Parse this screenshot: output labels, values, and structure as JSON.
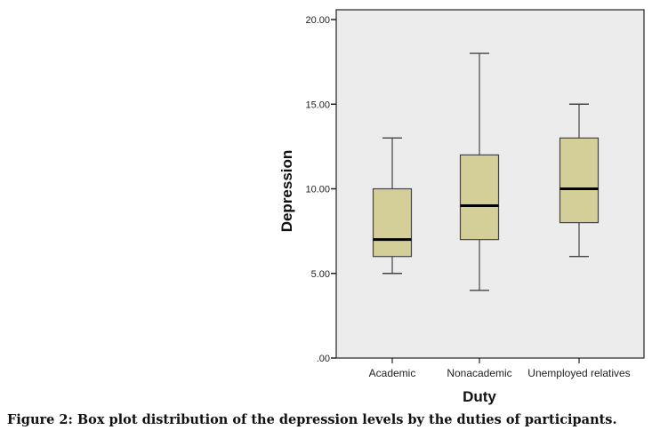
{
  "chart_data": {
    "type": "boxplot",
    "title": "",
    "xlabel": "Duty",
    "ylabel": "Depression",
    "ylim": [
      0,
      20
    ],
    "yticks": [
      {
        "value": 0,
        "label": ".00"
      },
      {
        "value": 5,
        "label": "5.00"
      },
      {
        "value": 10,
        "label": "10.00"
      },
      {
        "value": 15,
        "label": "15.00"
      },
      {
        "value": 20,
        "label": "20.00"
      }
    ],
    "categories": [
      "Academic",
      "Nonacademic",
      "Unemployed relatives"
    ],
    "boxes": [
      {
        "category": "Academic",
        "min": 5,
        "q1": 6,
        "median": 7,
        "q3": 10,
        "max": 13
      },
      {
        "category": "Nonacademic",
        "min": 4,
        "q1": 7,
        "median": 9,
        "q3": 12,
        "max": 18
      },
      {
        "category": "Unemployed relatives",
        "min": 6,
        "q1": 8,
        "median": 10,
        "q3": 13,
        "max": 15
      }
    ],
    "grid": false,
    "legend": "none",
    "colors": {
      "box_fill": "#d4cf98",
      "plot_background": "#ececec",
      "median": "#000000",
      "whisker": "#444444"
    }
  },
  "caption": "Figure 2: Box plot distribution of the depression levels by the duties of participants."
}
